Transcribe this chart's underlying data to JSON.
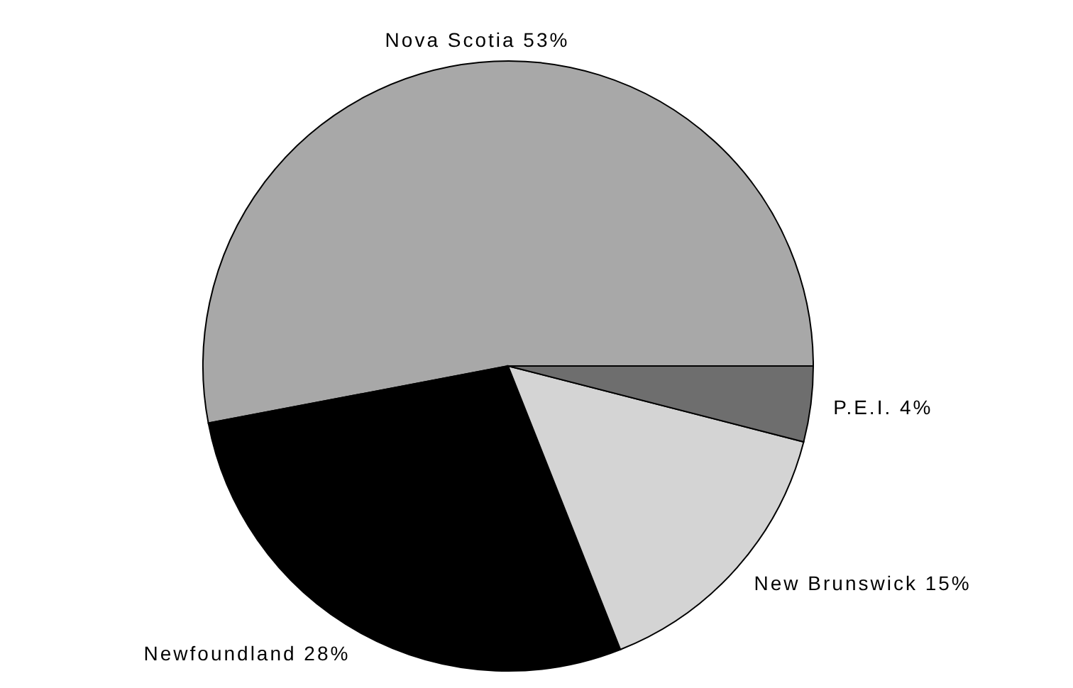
{
  "chart_data": {
    "type": "pie",
    "categories": [
      "Nova Scotia",
      "Newfoundland",
      "New Brunswick",
      "P.E.I."
    ],
    "values": [
      53,
      28,
      15,
      4
    ],
    "value_labels": [
      "53%",
      "28%",
      "15%",
      "4%"
    ],
    "colors": [
      "#a8a8a8",
      "#000000",
      "#d4d4d4",
      "#6e6e6e"
    ]
  }
}
